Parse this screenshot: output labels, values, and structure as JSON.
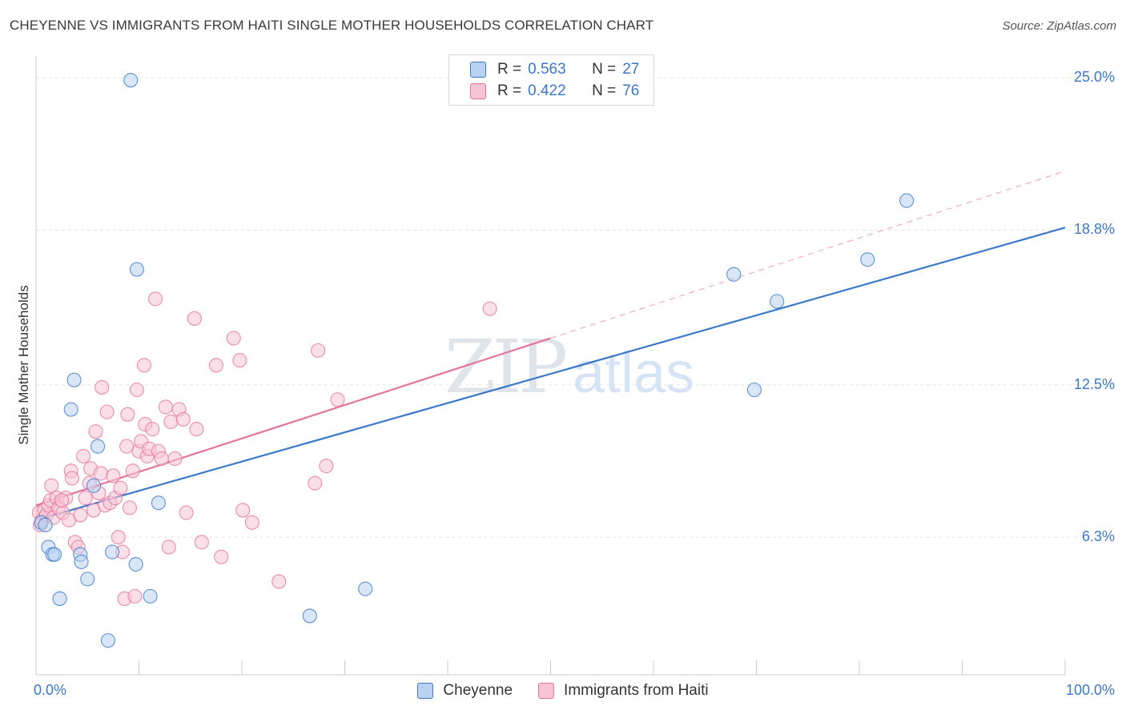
{
  "title": "CHEYENNE VS IMMIGRANTS FROM HAITI SINGLE MOTHER HOUSEHOLDS CORRELATION CHART",
  "source": "Source: ZipAtlas.com",
  "colors": {
    "cheyenne": "#3a78c9",
    "cheyenne_fill": "#b9d2f3",
    "haiti": "#e5739a",
    "haiti_fill": "#f7c4d5",
    "tick_label": "#3a78c9"
  },
  "legend": {
    "rows": [
      {
        "r_label": "R =",
        "r_value": "0.563",
        "n_label": "N =",
        "n_value": "27"
      },
      {
        "r_label": "R =",
        "r_value": "0.422",
        "n_label": "N =",
        "n_value": "76"
      }
    ]
  },
  "chart_data": {
    "type": "scatter",
    "title": "CHEYENNE VS IMMIGRANTS FROM HAITI SINGLE MOTHER HOUSEHOLDS CORRELATION CHART",
    "xlabel": "",
    "ylabel": "Single Mother Households",
    "xlim": [
      0,
      100
    ],
    "ylim": [
      0,
      26.5
    ],
    "x_tick_labels": [
      "0.0%",
      "100.0%"
    ],
    "y_ticks": [
      6.3,
      12.5,
      18.8,
      25.0
    ],
    "y_tick_labels": [
      "6.3%",
      "12.5%",
      "18.8%",
      "25.0%"
    ],
    "grid": true,
    "legend_position": "top-center",
    "series": [
      {
        "name": "Cheyenne",
        "color": "#3a78c9",
        "points": [
          [
            0.5,
            6.9
          ],
          [
            1.2,
            5.9
          ],
          [
            1.6,
            5.6
          ],
          [
            2.3,
            3.8
          ],
          [
            3.4,
            11.5
          ],
          [
            3.7,
            12.7
          ],
          [
            4.3,
            5.6
          ],
          [
            4.4,
            5.3
          ],
          [
            5.0,
            4.6
          ],
          [
            5.6,
            8.4
          ],
          [
            6.0,
            10.0
          ],
          [
            7.0,
            2.1
          ],
          [
            7.4,
            5.7
          ],
          [
            9.2,
            24.9
          ],
          [
            9.7,
            5.2
          ],
          [
            9.8,
            17.2
          ],
          [
            11.1,
            3.9
          ],
          [
            11.9,
            7.7
          ],
          [
            32.0,
            4.2
          ],
          [
            26.6,
            3.1
          ],
          [
            67.8,
            17.0
          ],
          [
            69.8,
            12.3
          ],
          [
            72.0,
            15.9
          ],
          [
            80.8,
            17.6
          ],
          [
            84.6,
            20.0
          ],
          [
            0.9,
            6.8
          ],
          [
            1.8,
            5.6
          ]
        ]
      },
      {
        "name": "Immigrants from Haiti",
        "color": "#e5739a",
        "points": [
          [
            0.3,
            7.3
          ],
          [
            0.4,
            6.8
          ],
          [
            0.6,
            7.0
          ],
          [
            0.8,
            7.4
          ],
          [
            1.0,
            7.2
          ],
          [
            1.2,
            7.6
          ],
          [
            1.4,
            7.8
          ],
          [
            1.5,
            8.4
          ],
          [
            1.7,
            7.1
          ],
          [
            2.0,
            7.9
          ],
          [
            2.2,
            7.5
          ],
          [
            2.6,
            7.3
          ],
          [
            2.9,
            7.9
          ],
          [
            3.2,
            7.0
          ],
          [
            3.4,
            9.0
          ],
          [
            3.5,
            8.7
          ],
          [
            3.8,
            6.1
          ],
          [
            4.1,
            5.9
          ],
          [
            4.3,
            7.2
          ],
          [
            4.6,
            9.6
          ],
          [
            4.8,
            7.9
          ],
          [
            5.2,
            8.5
          ],
          [
            5.3,
            9.1
          ],
          [
            5.6,
            7.4
          ],
          [
            5.8,
            10.6
          ],
          [
            6.1,
            8.1
          ],
          [
            6.3,
            8.9
          ],
          [
            6.4,
            12.4
          ],
          [
            6.7,
            7.6
          ],
          [
            6.9,
            11.4
          ],
          [
            7.2,
            7.7
          ],
          [
            7.5,
            8.8
          ],
          [
            7.7,
            7.9
          ],
          [
            8.0,
            6.3
          ],
          [
            8.2,
            8.3
          ],
          [
            8.4,
            5.7
          ],
          [
            8.6,
            3.8
          ],
          [
            8.8,
            10.0
          ],
          [
            8.9,
            11.3
          ],
          [
            9.1,
            7.5
          ],
          [
            9.4,
            9.0
          ],
          [
            9.6,
            3.9
          ],
          [
            9.8,
            12.3
          ],
          [
            10.0,
            9.8
          ],
          [
            10.2,
            10.2
          ],
          [
            10.5,
            13.3
          ],
          [
            10.6,
            10.9
          ],
          [
            10.8,
            9.6
          ],
          [
            11.0,
            9.9
          ],
          [
            11.3,
            10.7
          ],
          [
            11.6,
            16.0
          ],
          [
            11.9,
            9.8
          ],
          [
            12.2,
            9.5
          ],
          [
            12.6,
            11.6
          ],
          [
            12.9,
            5.9
          ],
          [
            13.1,
            11.0
          ],
          [
            13.5,
            9.5
          ],
          [
            13.9,
            11.5
          ],
          [
            14.3,
            11.1
          ],
          [
            14.6,
            7.3
          ],
          [
            15.4,
            15.2
          ],
          [
            15.6,
            10.7
          ],
          [
            16.1,
            6.1
          ],
          [
            17.5,
            13.3
          ],
          [
            18.0,
            5.5
          ],
          [
            19.2,
            14.4
          ],
          [
            19.8,
            13.5
          ],
          [
            20.1,
            7.4
          ],
          [
            21.0,
            6.9
          ],
          [
            23.6,
            4.5
          ],
          [
            27.1,
            8.5
          ],
          [
            27.4,
            13.9
          ],
          [
            28.2,
            9.2
          ],
          [
            29.3,
            11.9
          ],
          [
            44.1,
            15.6
          ],
          [
            2.5,
            7.8
          ]
        ]
      }
    ],
    "trend_lines": [
      {
        "series": "Cheyenne",
        "x": [
          0,
          100
        ],
        "y": [
          7.0,
          18.9
        ],
        "style": "solid"
      },
      {
        "series": "Immigrants from Haiti",
        "x": [
          0,
          50
        ],
        "y": [
          7.6,
          14.4
        ],
        "style": "solid"
      },
      {
        "series": "Immigrants from Haiti",
        "x": [
          50,
          100
        ],
        "y": [
          14.4,
          21.2
        ],
        "style": "dashed"
      }
    ]
  },
  "bottom_legend": {
    "items": [
      {
        "label": "Cheyenne"
      },
      {
        "label": "Immigrants from Haiti"
      }
    ]
  },
  "x_axis": {
    "left_label": "0.0%",
    "right_label": "100.0%"
  },
  "watermark": {
    "text_a": "ZIP",
    "text_b": "atlas"
  }
}
